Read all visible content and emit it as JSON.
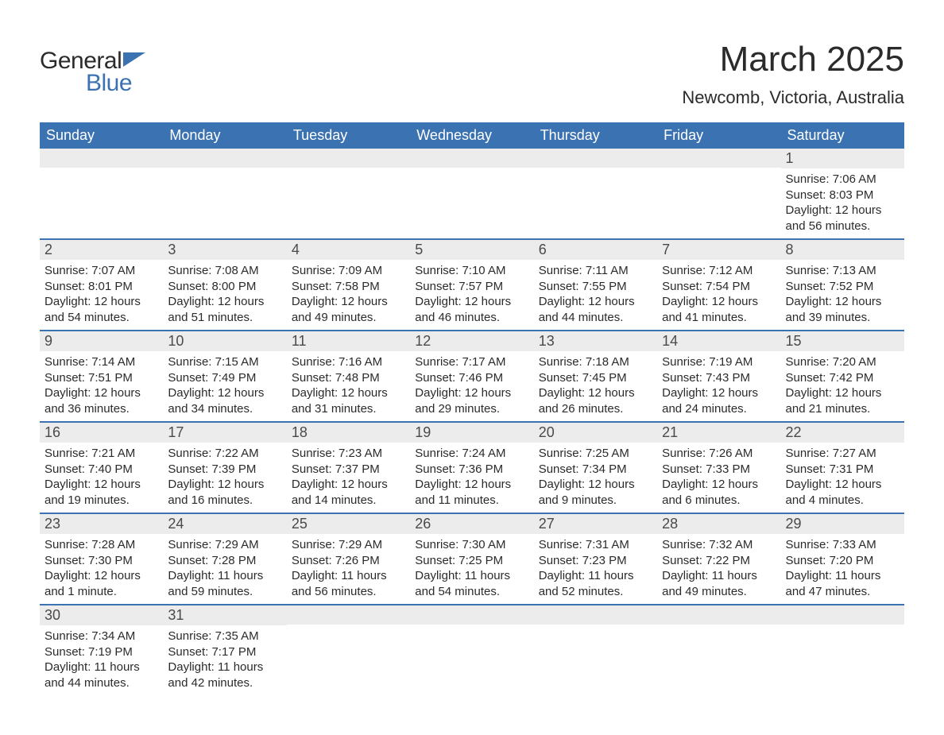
{
  "logo": {
    "line1": "General",
    "line2": "Blue",
    "mark_color": "#3b72b2"
  },
  "title": "March 2025",
  "location": "Newcomb, Victoria, Australia",
  "colors": {
    "header_bg": "#3b72b2",
    "header_text": "#ffffff",
    "daynum_bg": "#ececec",
    "row_divider": "#3b72b2",
    "body_text": "#2b2b2b"
  },
  "typography": {
    "title_size_pt": 33,
    "location_size_pt": 17,
    "dayheader_size_pt": 14,
    "body_size_pt": 11
  },
  "day_headers": [
    "Sunday",
    "Monday",
    "Tuesday",
    "Wednesday",
    "Thursday",
    "Friday",
    "Saturday"
  ],
  "weeks": [
    [
      null,
      null,
      null,
      null,
      null,
      null,
      {
        "n": "1",
        "sunrise": "Sunrise: 7:06 AM",
        "sunset": "Sunset: 8:03 PM",
        "daylight": "Daylight: 12 hours and 56 minutes."
      }
    ],
    [
      {
        "n": "2",
        "sunrise": "Sunrise: 7:07 AM",
        "sunset": "Sunset: 8:01 PM",
        "daylight": "Daylight: 12 hours and 54 minutes."
      },
      {
        "n": "3",
        "sunrise": "Sunrise: 7:08 AM",
        "sunset": "Sunset: 8:00 PM",
        "daylight": "Daylight: 12 hours and 51 minutes."
      },
      {
        "n": "4",
        "sunrise": "Sunrise: 7:09 AM",
        "sunset": "Sunset: 7:58 PM",
        "daylight": "Daylight: 12 hours and 49 minutes."
      },
      {
        "n": "5",
        "sunrise": "Sunrise: 7:10 AM",
        "sunset": "Sunset: 7:57 PM",
        "daylight": "Daylight: 12 hours and 46 minutes."
      },
      {
        "n": "6",
        "sunrise": "Sunrise: 7:11 AM",
        "sunset": "Sunset: 7:55 PM",
        "daylight": "Daylight: 12 hours and 44 minutes."
      },
      {
        "n": "7",
        "sunrise": "Sunrise: 7:12 AM",
        "sunset": "Sunset: 7:54 PM",
        "daylight": "Daylight: 12 hours and 41 minutes."
      },
      {
        "n": "8",
        "sunrise": "Sunrise: 7:13 AM",
        "sunset": "Sunset: 7:52 PM",
        "daylight": "Daylight: 12 hours and 39 minutes."
      }
    ],
    [
      {
        "n": "9",
        "sunrise": "Sunrise: 7:14 AM",
        "sunset": "Sunset: 7:51 PM",
        "daylight": "Daylight: 12 hours and 36 minutes."
      },
      {
        "n": "10",
        "sunrise": "Sunrise: 7:15 AM",
        "sunset": "Sunset: 7:49 PM",
        "daylight": "Daylight: 12 hours and 34 minutes."
      },
      {
        "n": "11",
        "sunrise": "Sunrise: 7:16 AM",
        "sunset": "Sunset: 7:48 PM",
        "daylight": "Daylight: 12 hours and 31 minutes."
      },
      {
        "n": "12",
        "sunrise": "Sunrise: 7:17 AM",
        "sunset": "Sunset: 7:46 PM",
        "daylight": "Daylight: 12 hours and 29 minutes."
      },
      {
        "n": "13",
        "sunrise": "Sunrise: 7:18 AM",
        "sunset": "Sunset: 7:45 PM",
        "daylight": "Daylight: 12 hours and 26 minutes."
      },
      {
        "n": "14",
        "sunrise": "Sunrise: 7:19 AM",
        "sunset": "Sunset: 7:43 PM",
        "daylight": "Daylight: 12 hours and 24 minutes."
      },
      {
        "n": "15",
        "sunrise": "Sunrise: 7:20 AM",
        "sunset": "Sunset: 7:42 PM",
        "daylight": "Daylight: 12 hours and 21 minutes."
      }
    ],
    [
      {
        "n": "16",
        "sunrise": "Sunrise: 7:21 AM",
        "sunset": "Sunset: 7:40 PM",
        "daylight": "Daylight: 12 hours and 19 minutes."
      },
      {
        "n": "17",
        "sunrise": "Sunrise: 7:22 AM",
        "sunset": "Sunset: 7:39 PM",
        "daylight": "Daylight: 12 hours and 16 minutes."
      },
      {
        "n": "18",
        "sunrise": "Sunrise: 7:23 AM",
        "sunset": "Sunset: 7:37 PM",
        "daylight": "Daylight: 12 hours and 14 minutes."
      },
      {
        "n": "19",
        "sunrise": "Sunrise: 7:24 AM",
        "sunset": "Sunset: 7:36 PM",
        "daylight": "Daylight: 12 hours and 11 minutes."
      },
      {
        "n": "20",
        "sunrise": "Sunrise: 7:25 AM",
        "sunset": "Sunset: 7:34 PM",
        "daylight": "Daylight: 12 hours and 9 minutes."
      },
      {
        "n": "21",
        "sunrise": "Sunrise: 7:26 AM",
        "sunset": "Sunset: 7:33 PM",
        "daylight": "Daylight: 12 hours and 6 minutes."
      },
      {
        "n": "22",
        "sunrise": "Sunrise: 7:27 AM",
        "sunset": "Sunset: 7:31 PM",
        "daylight": "Daylight: 12 hours and 4 minutes."
      }
    ],
    [
      {
        "n": "23",
        "sunrise": "Sunrise: 7:28 AM",
        "sunset": "Sunset: 7:30 PM",
        "daylight": "Daylight: 12 hours and 1 minute."
      },
      {
        "n": "24",
        "sunrise": "Sunrise: 7:29 AM",
        "sunset": "Sunset: 7:28 PM",
        "daylight": "Daylight: 11 hours and 59 minutes."
      },
      {
        "n": "25",
        "sunrise": "Sunrise: 7:29 AM",
        "sunset": "Sunset: 7:26 PM",
        "daylight": "Daylight: 11 hours and 56 minutes."
      },
      {
        "n": "26",
        "sunrise": "Sunrise: 7:30 AM",
        "sunset": "Sunset: 7:25 PM",
        "daylight": "Daylight: 11 hours and 54 minutes."
      },
      {
        "n": "27",
        "sunrise": "Sunrise: 7:31 AM",
        "sunset": "Sunset: 7:23 PM",
        "daylight": "Daylight: 11 hours and 52 minutes."
      },
      {
        "n": "28",
        "sunrise": "Sunrise: 7:32 AM",
        "sunset": "Sunset: 7:22 PM",
        "daylight": "Daylight: 11 hours and 49 minutes."
      },
      {
        "n": "29",
        "sunrise": "Sunrise: 7:33 AM",
        "sunset": "Sunset: 7:20 PM",
        "daylight": "Daylight: 11 hours and 47 minutes."
      }
    ],
    [
      {
        "n": "30",
        "sunrise": "Sunrise: 7:34 AM",
        "sunset": "Sunset: 7:19 PM",
        "daylight": "Daylight: 11 hours and 44 minutes."
      },
      {
        "n": "31",
        "sunrise": "Sunrise: 7:35 AM",
        "sunset": "Sunset: 7:17 PM",
        "daylight": "Daylight: 11 hours and 42 minutes."
      },
      null,
      null,
      null,
      null,
      null
    ]
  ]
}
